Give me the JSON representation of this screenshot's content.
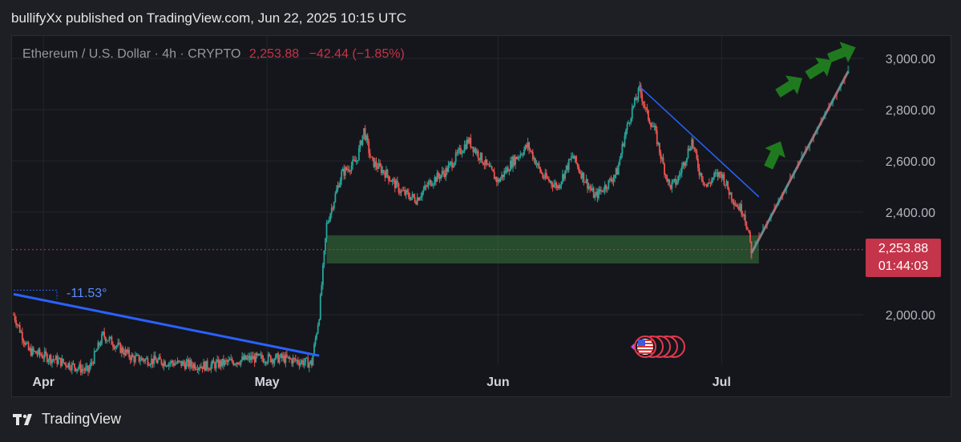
{
  "header": {
    "published_text": "bullifyXx published on TradingView.com, Jun 22, 2025 10:15 UTC"
  },
  "symbol": {
    "name": "Ethereum / U.S. Dollar · 4h · CRYPTO",
    "price": "2,253.88",
    "change": "−42.44 (−1.85%)"
  },
  "badge": {
    "price": "2,253.88",
    "countdown": "01:44:03"
  },
  "footer": {
    "brand": "TradingView",
    "logo_icon": "tradingview-logo-icon"
  },
  "annotations": {
    "angle_label": "-11.53°",
    "event_icon": "us-flag-event-icons"
  },
  "colors": {
    "up": "#26a69a",
    "down": "#ef5350",
    "trendline": "#2962ff",
    "zone": "#2e5d34",
    "arrow": "#1f7a1f",
    "price_line": "#c4344a"
  },
  "chart_data": {
    "type": "line",
    "title": "Ethereum / U.S. Dollar · 4h · CRYPTO",
    "x_ticks": [
      "Apr",
      "May",
      "Jun",
      "Jul"
    ],
    "y_ticks": [
      2000,
      2400,
      2600,
      2800,
      3000
    ],
    "y_tick_labels": [
      "2,000.00",
      "2,400.00",
      "2,600.00",
      "2,800.00",
      "3,000.00"
    ],
    "ylim": [
      1800,
      3060
    ],
    "x_range": [
      "2025-03-28",
      "2025-07-20"
    ],
    "current_price": 2253.88,
    "series": [
      {
        "values": [
          {
            "x": "2025-03-28",
            "y": 2000
          },
          {
            "x": "2025-03-30",
            "y": 1860
          },
          {
            "x": "2025-04-03",
            "y": 1820
          },
          {
            "x": "2025-04-07",
            "y": 1780
          },
          {
            "x": "2025-04-09",
            "y": 1920
          },
          {
            "x": "2025-04-13",
            "y": 1830
          },
          {
            "x": "2025-04-19",
            "y": 1810
          },
          {
            "x": "2025-04-23",
            "y": 1800
          },
          {
            "x": "2025-04-29",
            "y": 1830
          },
          {
            "x": "2025-05-03",
            "y": 1830
          },
          {
            "x": "2025-05-07",
            "y": 1810
          },
          {
            "x": "2025-05-08",
            "y": 2000
          },
          {
            "x": "2025-05-09",
            "y": 2350
          },
          {
            "x": "2025-05-10",
            "y": 2450
          },
          {
            "x": "2025-05-11",
            "y": 2550
          },
          {
            "x": "2025-05-13",
            "y": 2600
          },
          {
            "x": "2025-05-14",
            "y": 2720
          },
          {
            "x": "2025-05-15",
            "y": 2600
          },
          {
            "x": "2025-05-17",
            "y": 2550
          },
          {
            "x": "2025-05-19",
            "y": 2480
          },
          {
            "x": "2025-05-21",
            "y": 2450
          },
          {
            "x": "2025-05-23",
            "y": 2520
          },
          {
            "x": "2025-05-25",
            "y": 2560
          },
          {
            "x": "2025-05-27",
            "y": 2640
          },
          {
            "x": "2025-05-28",
            "y": 2680
          },
          {
            "x": "2025-05-30",
            "y": 2600
          },
          {
            "x": "2025-06-01",
            "y": 2520
          },
          {
            "x": "2025-06-03",
            "y": 2600
          },
          {
            "x": "2025-06-05",
            "y": 2660
          },
          {
            "x": "2025-06-07",
            "y": 2540
          },
          {
            "x": "2025-06-09",
            "y": 2500
          },
          {
            "x": "2025-06-11",
            "y": 2620
          },
          {
            "x": "2025-06-12",
            "y": 2560
          },
          {
            "x": "2025-06-14",
            "y": 2460
          },
          {
            "x": "2025-06-16",
            "y": 2520
          },
          {
            "x": "2025-06-17",
            "y": 2560
          },
          {
            "x": "2025-06-18",
            "y": 2700
          },
          {
            "x": "2025-06-19",
            "y": 2800
          },
          {
            "x": "2025-06-20",
            "y": 2880
          },
          {
            "x": "2025-06-21",
            "y": 2780
          },
          {
            "x": "2025-06-22",
            "y": 2720
          },
          {
            "x": "2025-06-23",
            "y": 2600
          },
          {
            "x": "2025-06-24",
            "y": 2500
          },
          {
            "x": "2025-06-25",
            "y": 2520
          },
          {
            "x": "2025-06-26",
            "y": 2600
          },
          {
            "x": "2025-06-27",
            "y": 2680
          },
          {
            "x": "2025-06-28",
            "y": 2560
          },
          {
            "x": "2025-06-29",
            "y": 2500
          },
          {
            "x": "2025-06-30",
            "y": 2540
          },
          {
            "x": "2025-07-01",
            "y": 2550
          },
          {
            "x": "2025-07-02",
            "y": 2480
          },
          {
            "x": "2025-07-03",
            "y": 2430
          },
          {
            "x": "2025-07-04",
            "y": 2400
          },
          {
            "x": "2025-07-05",
            "y": 2253.88
          }
        ]
      }
    ],
    "drawings": {
      "support_zone": {
        "x_start": "2025-05-09",
        "x_end": "2025-07-06",
        "y_low": 2200,
        "y_high": 2310
      },
      "descending_trendline": [
        {
          "x": "2025-06-20",
          "y": 2890
        },
        {
          "x": "2025-07-06",
          "y": 2460
        }
      ],
      "long_trendline": [
        {
          "x": "2025-03-28",
          "y": 2080
        },
        {
          "x": "2025-05-08",
          "y": 1840
        }
      ],
      "projection_line": [
        {
          "x": "2025-07-05",
          "y": 2240
        },
        {
          "x": "2025-07-18",
          "y": 2950
        }
      ],
      "forecast_arrows": [
        {
          "x": "2025-07-08",
          "y": 2620
        },
        {
          "x": "2025-07-10",
          "y": 2890
        },
        {
          "x": "2025-07-14",
          "y": 2960
        },
        {
          "x": "2025-07-17",
          "y": 3020
        }
      ]
    }
  }
}
